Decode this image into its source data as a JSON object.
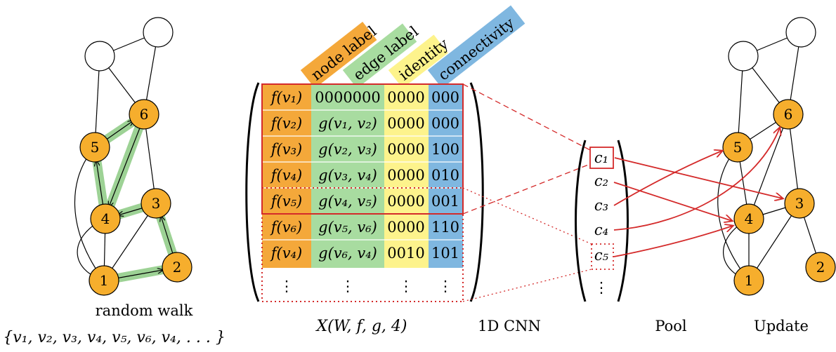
{
  "colors": {
    "node_fill": "#F6AE2D",
    "walk_green": "#8CCB83",
    "red": "#D42A2A",
    "col_node": "#F4A83A",
    "col_edge": "#A8DCA0",
    "col_identity": "#FDF38C",
    "col_connectivity": "#7FB7E0"
  },
  "left_graph": {
    "caption": "random walk",
    "walk_formula": "W = {v₁, v₂, v₃, v₄, v₅, v₆, v₄, . . . }",
    "node_labels": [
      "1",
      "2",
      "3",
      "4",
      "5",
      "6"
    ]
  },
  "matrix": {
    "headers": [
      "node label",
      "edge label",
      "identity",
      "connectivity"
    ],
    "rows": [
      [
        "f(v₁)",
        "0000000",
        "0000",
        "000"
      ],
      [
        "f(v₂)",
        "g(v₁, v₂)",
        "0000",
        "000"
      ],
      [
        "f(v₃)",
        "g(v₂, v₃)",
        "0000",
        "100"
      ],
      [
        "f(v₄)",
        "g(v₃, v₄)",
        "0000",
        "010"
      ],
      [
        "f(v₅)",
        "g(v₄, v₅)",
        "0000",
        "001"
      ],
      [
        "f(v₆)",
        "g(v₅, v₆)",
        "0000",
        "110"
      ],
      [
        "f(v₄)",
        "g(v₆, v₄)",
        "0010",
        "101"
      ]
    ],
    "ellipsis": "⋮",
    "caption": "X(W, f, g, 4)"
  },
  "cnn": {
    "caption": "1D CNN",
    "outputs": [
      "c₁",
      "c₂",
      "c₃",
      "c₄",
      "c₅"
    ],
    "ellipsis": "⋮"
  },
  "pool_caption": "Pool",
  "right_graph": {
    "caption": "Update",
    "node_labels": [
      "1",
      "2",
      "3",
      "4",
      "5",
      "6"
    ]
  }
}
